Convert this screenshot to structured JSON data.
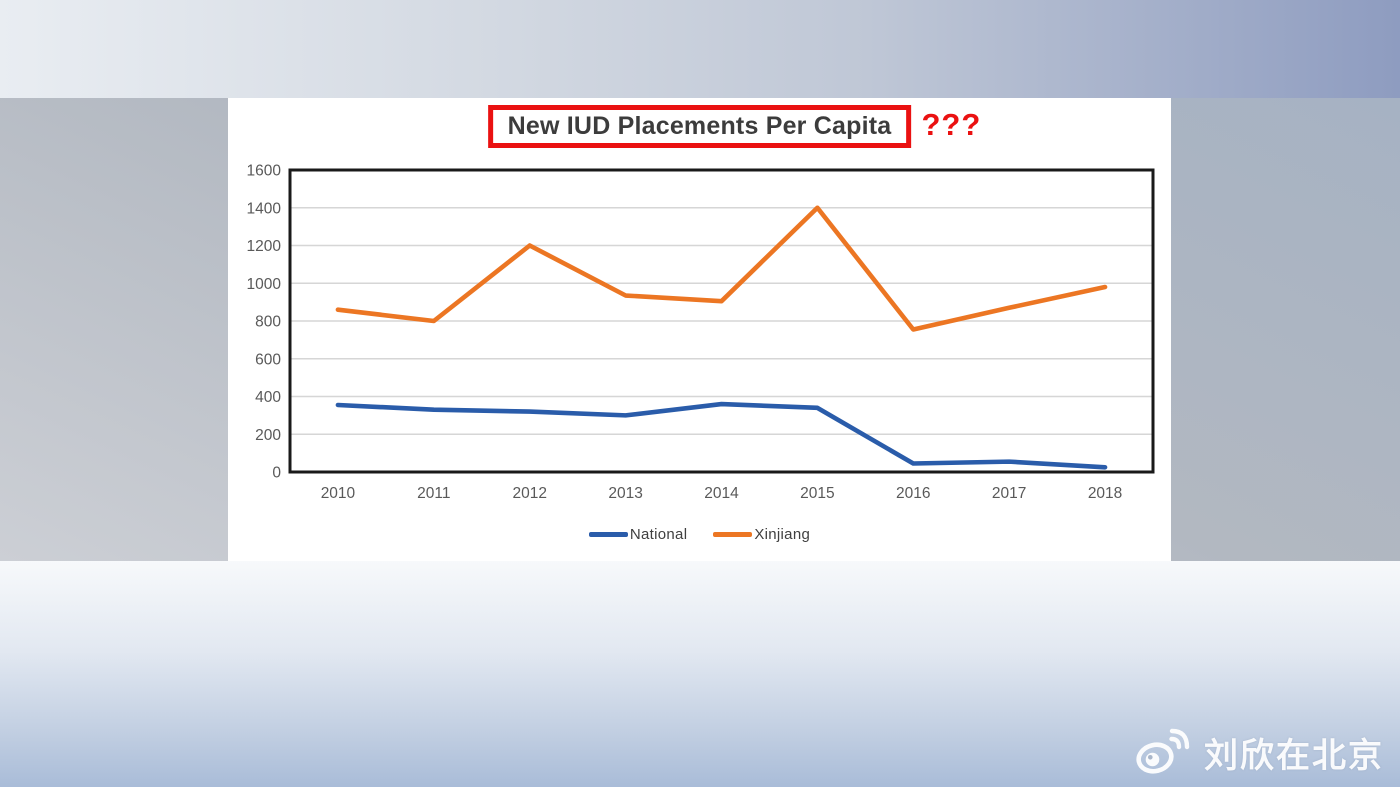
{
  "annotations": {
    "question_marks": "???",
    "highlight_box_color": "#ea1111"
  },
  "chart_data": {
    "type": "line",
    "title": "New IUD Placements Per Capita",
    "categories": [
      "2010",
      "2011",
      "2012",
      "2013",
      "2014",
      "2015",
      "2016",
      "2017",
      "2018"
    ],
    "series": [
      {
        "name": "National",
        "color": "#2a5caa",
        "values": [
          355,
          330,
          320,
          300,
          360,
          340,
          45,
          55,
          25
        ]
      },
      {
        "name": "Xinjiang",
        "color": "#ec7623",
        "values": [
          860,
          800,
          1200,
          935,
          905,
          1400,
          755,
          870,
          980
        ]
      }
    ],
    "xlabel": "",
    "ylabel": "",
    "ylim": [
      0,
      1600
    ],
    "ytick_step": 200,
    "grid": true,
    "gridline_color": "#d6d6d6",
    "axis_label_color": "#595959",
    "plot_border_color": "#1a1a1a",
    "legend_position": "bottom"
  },
  "watermark": {
    "text": "刘欣在北京",
    "icon": "weibo-icon"
  }
}
